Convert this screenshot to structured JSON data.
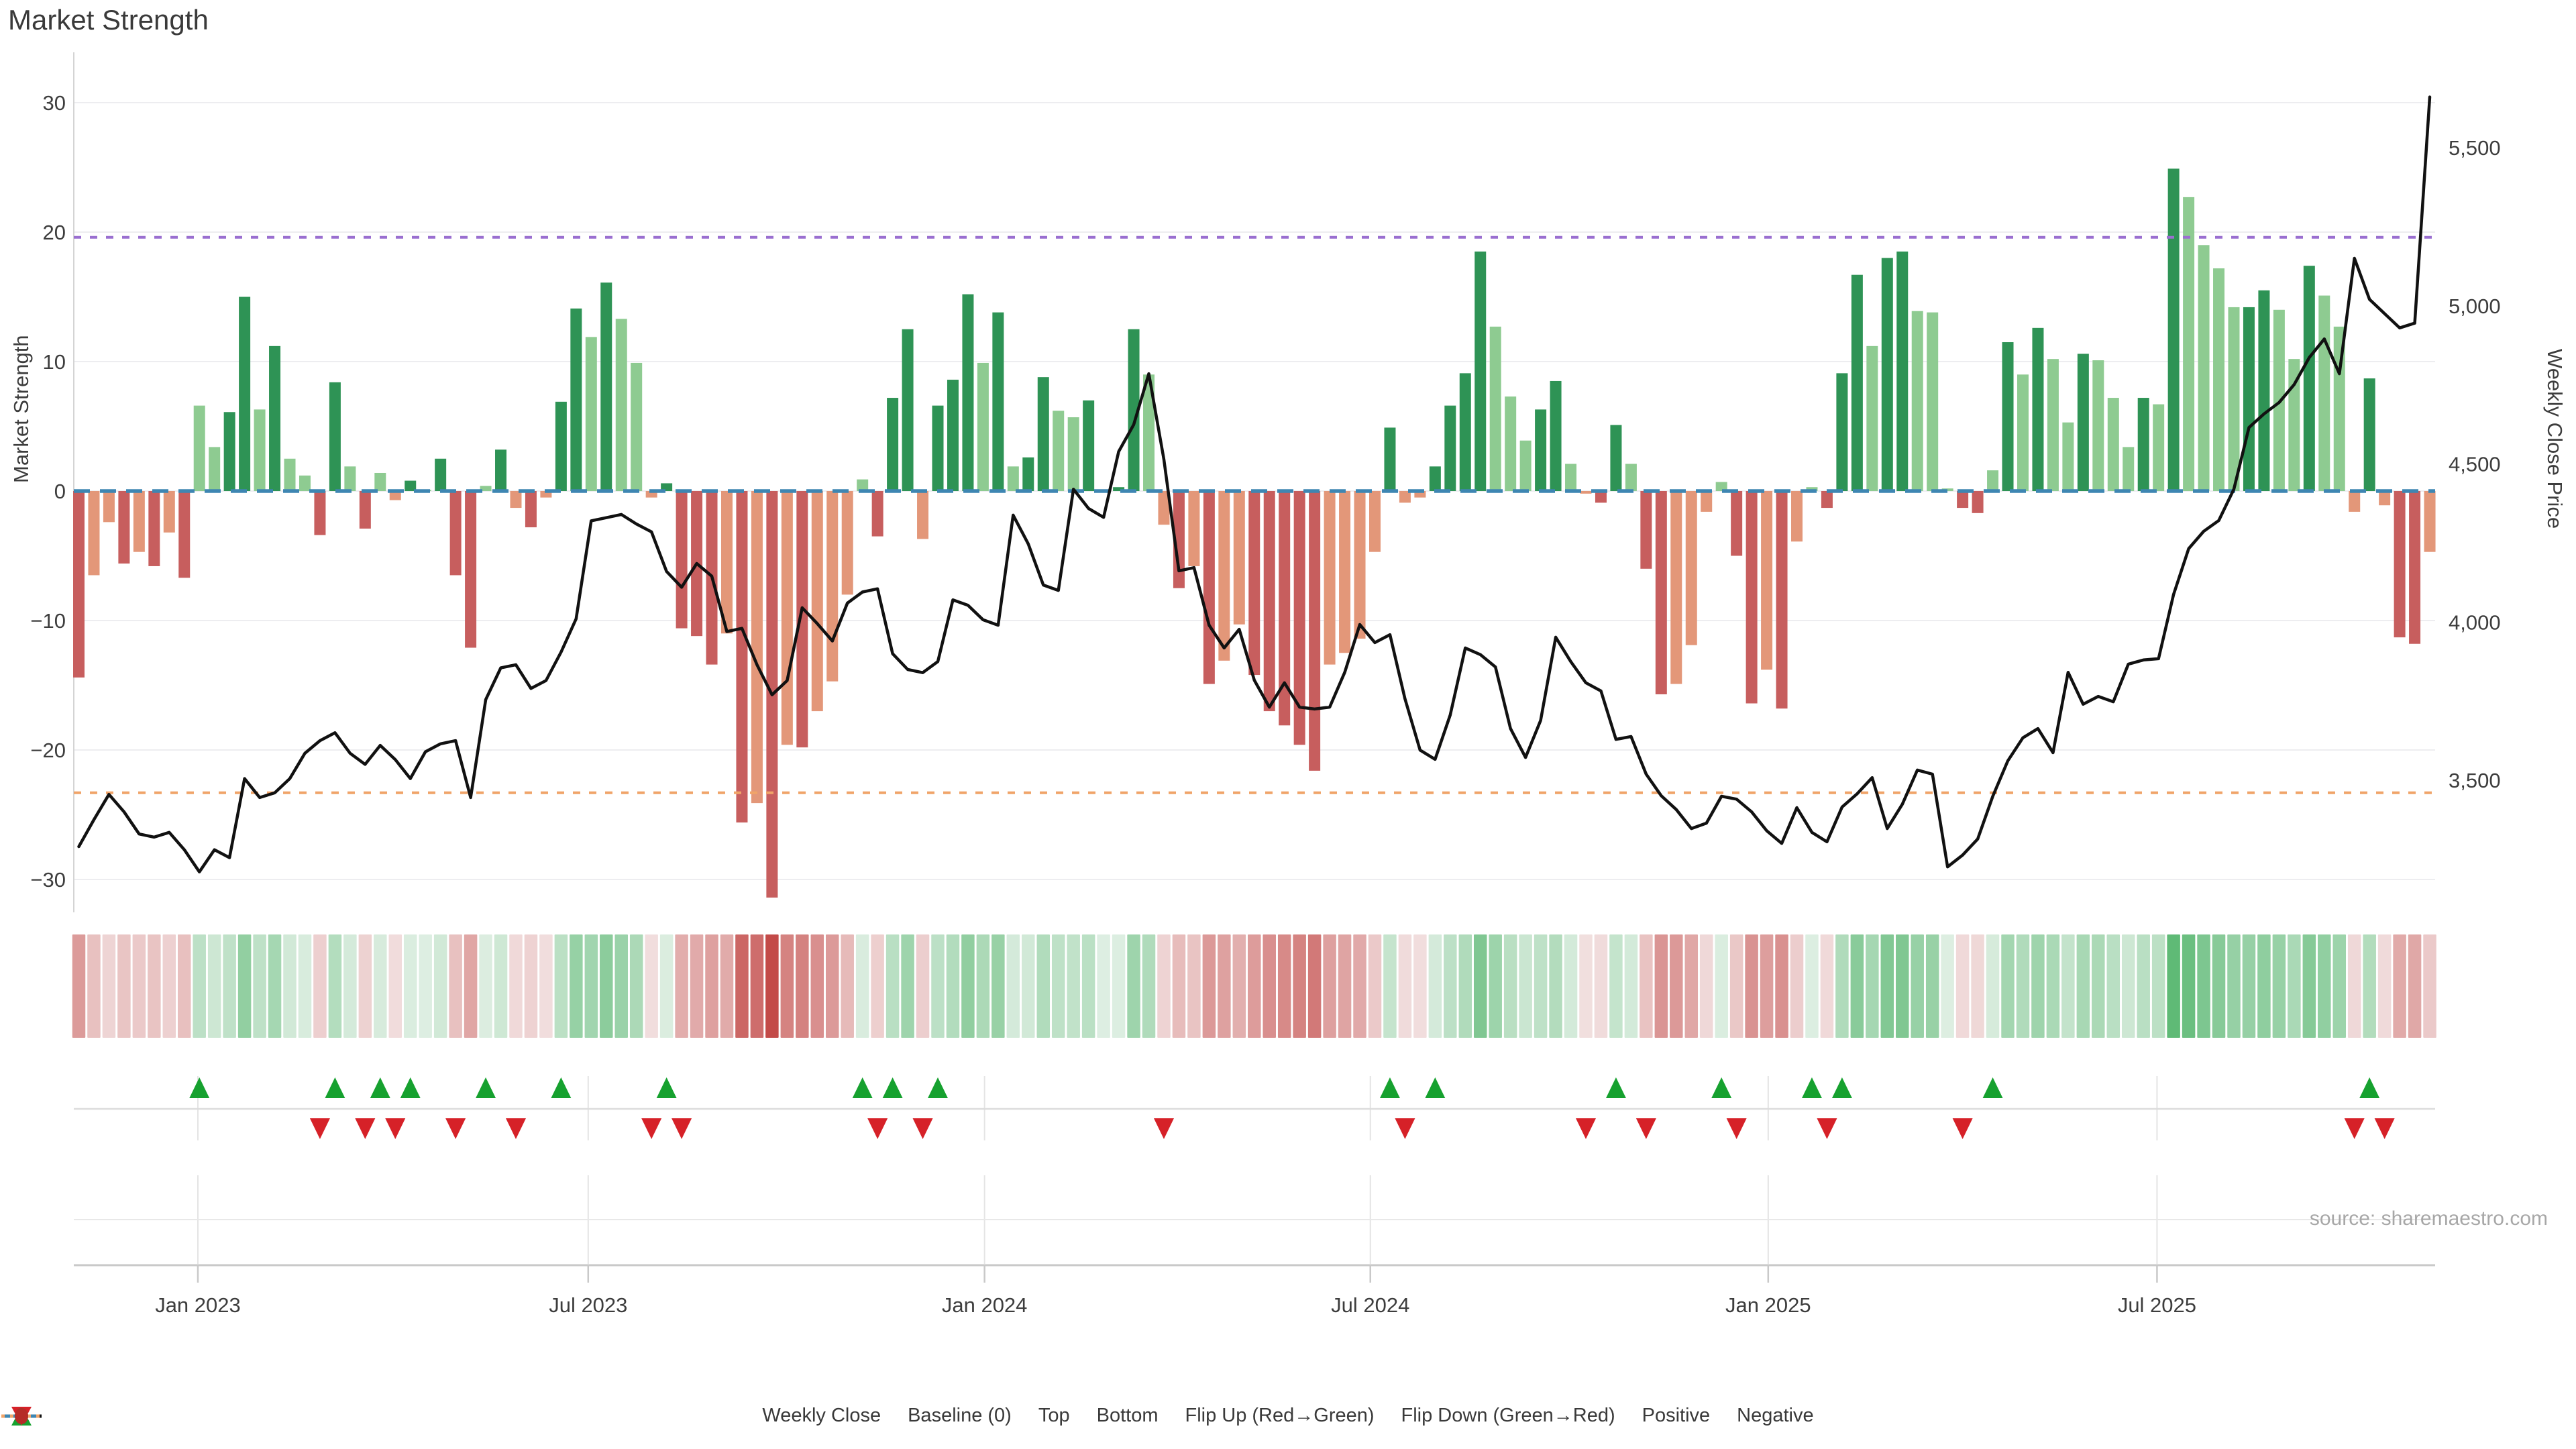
{
  "title": "Market Strength",
  "source_note": "source: sharemaestro.com",
  "axes": {
    "left": {
      "title": "Market Strength",
      "tick_labels": [
        "30",
        "20",
        "10",
        "0",
        "−10",
        "−20",
        "−30"
      ],
      "tick_values": [
        30,
        20,
        10,
        0,
        -10,
        -20,
        -30
      ]
    },
    "right": {
      "title": "Weekly Close Price",
      "tick_labels": [
        "5,500",
        "5,000",
        "4,500",
        "4,000",
        "3,500"
      ],
      "tick_values": [
        5500,
        5000,
        4500,
        4000,
        3500
      ]
    },
    "x": {
      "tick_labels": [
        "Jan 2023",
        "Jul 2023",
        "Jan 2024",
        "Jul 2024",
        "Jan 2025",
        "Jul 2025"
      ],
      "tick_weeks": [
        7.9,
        33.8,
        60.1,
        85.7,
        112.1,
        137.9
      ]
    }
  },
  "chart_data": {
    "type": "bar",
    "title": "Market Strength",
    "x_unit": "week",
    "start_week": "2022-11-07",
    "xlabel": "",
    "ylabel": "Market Strength",
    "ylabel_right": "Weekly Close Price",
    "left_ylim": [
      -33.5,
      33.5
    ],
    "right_ylim": [
      3280,
      5720
    ],
    "grid": "horizontal",
    "legend_position": "bottom",
    "series": [
      {
        "name": "Market Strength",
        "type": "bar",
        "axis": "left",
        "values": [
          -14.4,
          -6.5,
          -2.4,
          -5.6,
          -4.7,
          -5.8,
          -3.2,
          -6.7,
          6.6,
          3.4,
          6.1,
          15.0,
          6.3,
          11.2,
          2.5,
          1.2,
          -3.4,
          8.4,
          1.9,
          -2.9,
          1.4,
          -0.7,
          0.8,
          0.1,
          2.5,
          -6.5,
          -12.1,
          0.4,
          3.2,
          -1.3,
          -2.8,
          -0.5,
          6.9,
          14.1,
          11.9,
          16.1,
          13.3,
          9.9,
          -0.5,
          0.6,
          -10.6,
          -11.2,
          -13.4,
          -11.0,
          -25.6,
          -24.1,
          -31.4,
          -19.6,
          -19.8,
          -17.0,
          -14.7,
          -8.0,
          0.9,
          -3.5,
          7.2,
          12.5,
          -3.7,
          6.6,
          8.6,
          15.2,
          9.9,
          13.8,
          1.9,
          2.6,
          8.8,
          6.2,
          5.7,
          7.0,
          0.1,
          0.3,
          12.5,
          9.0,
          -2.6,
          -7.5,
          -5.8,
          -14.9,
          -13.1,
          -10.3,
          -14.2,
          -17.0,
          -18.1,
          -19.6,
          -21.6,
          -13.4,
          -12.5,
          -11.4,
          -4.7,
          4.9,
          -0.9,
          -0.5,
          1.9,
          6.6,
          9.1,
          18.5,
          12.7,
          7.3,
          3.9,
          6.3,
          8.5,
          2.1,
          -0.2,
          -0.9,
          5.1,
          2.1,
          -6.0,
          -15.7,
          -14.9,
          -11.9,
          -1.6,
          0.7,
          -5.0,
          -16.4,
          -13.8,
          -16.8,
          -3.9,
          0.3,
          -1.3,
          9.1,
          16.7,
          11.2,
          18.0,
          18.5,
          13.9,
          13.8,
          0.2,
          -1.3,
          -1.7,
          1.6,
          11.5,
          9.0,
          12.6,
          10.2,
          5.3,
          10.6,
          10.1,
          7.2,
          3.4,
          7.2,
          6.7,
          24.9,
          22.7,
          19.0,
          17.2,
          14.2,
          14.2,
          15.5,
          14.0,
          10.2,
          17.4,
          15.1,
          12.7,
          -1.6,
          8.7,
          -1.1,
          -11.3,
          -11.8,
          -4.7
        ]
      },
      {
        "name": "Weekly Close",
        "type": "line",
        "axis": "right",
        "values": [
          3290,
          3375,
          3455,
          3400,
          3330,
          3320,
          3335,
          3280,
          3210,
          3280,
          3255,
          3505,
          3445,
          3460,
          3505,
          3585,
          3625,
          3650,
          3585,
          3550,
          3610,
          3565,
          3505,
          3590,
          3615,
          3625,
          3445,
          3755,
          3855,
          3865,
          3790,
          3815,
          3905,
          4010,
          4320,
          4330,
          4340,
          4310,
          4285,
          4160,
          4110,
          4185,
          4145,
          3970,
          3980,
          3865,
          3770,
          3815,
          4045,
          3995,
          3940,
          4060,
          4095,
          4105,
          3900,
          3850,
          3840,
          3875,
          4070,
          4053,
          4007,
          3990,
          4338,
          4247,
          4117,
          4100,
          4420,
          4359,
          4331,
          4539,
          4624,
          4785,
          4514,
          4162,
          4172,
          3990,
          3918,
          3977,
          3816,
          3731,
          3808,
          3731,
          3725,
          3731,
          3841,
          3992,
          3935,
          3960,
          3757,
          3595,
          3566,
          3706,
          3918,
          3897,
          3858,
          3663,
          3572,
          3689,
          3952,
          3875,
          3808,
          3782,
          3629,
          3638,
          3519,
          3451,
          3407,
          3347,
          3364,
          3449,
          3440,
          3400,
          3340,
          3300,
          3413,
          3335,
          3305,
          3415,
          3457,
          3508,
          3347,
          3424,
          3532,
          3519,
          3226,
          3263,
          3314,
          3449,
          3561,
          3634,
          3663,
          3587,
          3841,
          3740,
          3765,
          3748,
          3867,
          3880,
          3884,
          4087,
          4232,
          4287,
          4321,
          4420,
          4615,
          4658,
          4694,
          4751,
          4836,
          4895,
          4785,
          5150,
          5020,
          4975,
          4930,
          4945,
          5660
        ]
      }
    ],
    "reference_lines": {
      "baseline": 0,
      "top": 19.6,
      "bottom": -23.3
    },
    "flip_up_weeks": [
      8,
      17,
      20,
      22,
      27,
      32,
      39,
      52,
      54,
      57,
      87,
      90,
      102,
      109,
      115,
      117,
      127,
      152
    ],
    "flip_down_weeks": [
      16,
      19,
      21,
      25,
      29,
      38,
      40,
      53,
      56,
      72,
      88,
      100,
      104,
      110,
      116,
      125,
      151,
      153
    ]
  },
  "colors": {
    "bar_pos_strong": "#2e9355",
    "bar_pos_soft": "#8ecb91",
    "bar_neg_strong": "#c75e5e",
    "bar_neg_soft": "#e39779",
    "baseline": "#3e86b2",
    "top_line": "#9a6fd0",
    "bottom_line": "#f0a469",
    "price_line": "#111111",
    "heat_pos": "#3eac5a",
    "heat_neg": "#c34a48",
    "flip_up": "#16a12f",
    "flip_down": "#d62128",
    "grid": "#ededf0",
    "axis_text": "#3d3d3d"
  },
  "legend": {
    "items": [
      {
        "label": "Weekly Close",
        "swatch": "line",
        "color": "#111111"
      },
      {
        "label": "Baseline (0)",
        "swatch": "dashed",
        "color": "#3e86b2"
      },
      {
        "label": "Top",
        "swatch": "dotted",
        "color": "#9a6fd0"
      },
      {
        "label": "Bottom",
        "swatch": "dotted",
        "color": "#f0a469"
      },
      {
        "label": "Flip Up (Red→Green)",
        "swatch": "triangle-up",
        "color": "#16a12f"
      },
      {
        "label": "Flip Down (Green→Red)",
        "swatch": "triangle-down",
        "color": "#d62128"
      },
      {
        "label": "Positive",
        "swatch": "circle",
        "color": "#1f8b35"
      },
      {
        "label": "Negative",
        "swatch": "circle",
        "color": "#b52b27"
      }
    ]
  }
}
